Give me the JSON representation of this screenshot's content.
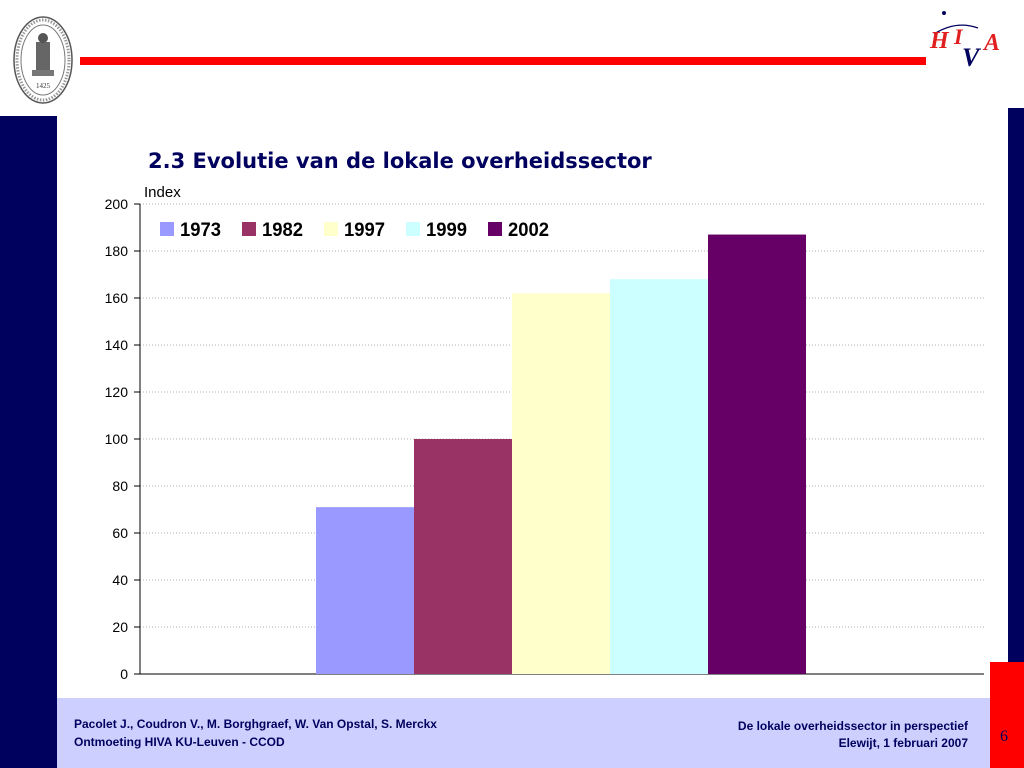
{
  "slide": {
    "title": "2.3 Evolutie van de lokale overheidssector",
    "seal_year": "1425",
    "logo_text": "HIVA",
    "page_number": "6"
  },
  "footer": {
    "left_line1": "Pacolet J., Coudron V., M. Borghgraef, W. Van Opstal, S. Merckx",
    "left_line2": "Ontmoeting HIVA KU-Leuven - CCOD",
    "right_line1": "De lokale overheidssector in perspectief",
    "right_line2": "Elewijt, 1 februari 2007"
  },
  "colors": {
    "navy": "#00005e",
    "red": "#ff0000",
    "footer_bg": "#cdd0ff"
  },
  "chart_data": {
    "type": "bar",
    "title": "",
    "ylabel": "Index",
    "xlabel": "",
    "ylim": [
      0,
      200
    ],
    "yticks": [
      0,
      20,
      40,
      60,
      80,
      100,
      120,
      140,
      160,
      180,
      200
    ],
    "grid": true,
    "legend_position": "top-left",
    "series": [
      {
        "name": "1973",
        "values": [
          71
        ],
        "color": "#9999ff"
      },
      {
        "name": "1982",
        "values": [
          100
        ],
        "color": "#993366"
      },
      {
        "name": "1997",
        "values": [
          162
        ],
        "color": "#ffffcc"
      },
      {
        "name": "1999",
        "values": [
          168
        ],
        "color": "#ccffff"
      },
      {
        "name": "2002",
        "values": [
          187
        ],
        "color": "#660066"
      }
    ]
  }
}
